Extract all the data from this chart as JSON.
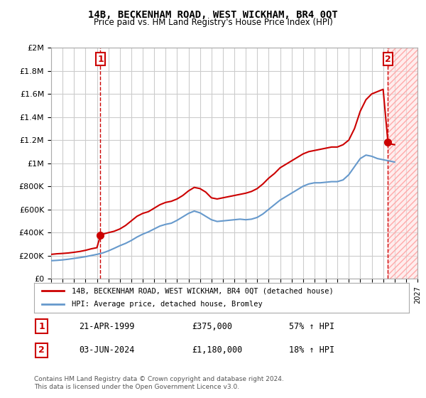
{
  "title": "14B, BECKENHAM ROAD, WEST WICKHAM, BR4 0QT",
  "subtitle": "Price paid vs. HM Land Registry's House Price Index (HPI)",
  "legend_label_red": "14B, BECKENHAM ROAD, WEST WICKHAM, BR4 0QT (detached house)",
  "legend_label_blue": "HPI: Average price, detached house, Bromley",
  "annotation1_box": "1",
  "annotation1_date": "21-APR-1999",
  "annotation1_price": "£375,000",
  "annotation1_hpi": "57% ↑ HPI",
  "annotation2_box": "2",
  "annotation2_date": "03-JUN-2024",
  "annotation2_price": "£1,180,000",
  "annotation2_hpi": "18% ↑ HPI",
  "footer": "Contains HM Land Registry data © Crown copyright and database right 2024.\nThis data is licensed under the Open Government Licence v3.0.",
  "xlim": [
    1995.0,
    2027.0
  ],
  "ylim": [
    0,
    2000000
  ],
  "red_color": "#cc0000",
  "blue_color": "#6699cc",
  "vline_color": "#cc0000",
  "background_color": "#ffffff",
  "grid_color": "#cccccc",
  "hatch_color": "#ffcccc",
  "transaction1_x": 1999.31,
  "transaction1_y": 375000,
  "transaction2_x": 2024.42,
  "transaction2_y": 1180000,
  "red_x": [
    1995.0,
    1995.5,
    1996.0,
    1996.5,
    1997.0,
    1997.5,
    1998.0,
    1998.5,
    1999.0,
    1999.31,
    1999.5,
    2000.0,
    2000.5,
    2001.0,
    2001.5,
    2002.0,
    2002.5,
    2003.0,
    2003.5,
    2004.0,
    2004.5,
    2005.0,
    2005.5,
    2006.0,
    2006.5,
    2007.0,
    2007.5,
    2008.0,
    2008.5,
    2009.0,
    2009.5,
    2010.0,
    2010.5,
    2011.0,
    2011.5,
    2012.0,
    2012.5,
    2013.0,
    2013.5,
    2014.0,
    2014.5,
    2015.0,
    2015.5,
    2016.0,
    2016.5,
    2017.0,
    2017.5,
    2018.0,
    2018.5,
    2019.0,
    2019.5,
    2020.0,
    2020.5,
    2021.0,
    2021.5,
    2022.0,
    2022.5,
    2023.0,
    2023.5,
    2024.0,
    2024.42,
    2024.5,
    2025.0
  ],
  "red_y": [
    210000,
    215000,
    218000,
    222000,
    228000,
    235000,
    245000,
    258000,
    268000,
    375000,
    385000,
    398000,
    410000,
    430000,
    460000,
    500000,
    540000,
    565000,
    580000,
    610000,
    640000,
    660000,
    670000,
    690000,
    720000,
    760000,
    790000,
    780000,
    750000,
    700000,
    690000,
    700000,
    710000,
    720000,
    730000,
    740000,
    755000,
    780000,
    820000,
    870000,
    910000,
    960000,
    990000,
    1020000,
    1050000,
    1080000,
    1100000,
    1110000,
    1120000,
    1130000,
    1140000,
    1140000,
    1160000,
    1200000,
    1300000,
    1450000,
    1550000,
    1600000,
    1620000,
    1640000,
    1180000,
    1170000,
    1160000
  ],
  "blue_x": [
    1995.0,
    1995.5,
    1996.0,
    1996.5,
    1997.0,
    1997.5,
    1998.0,
    1998.5,
    1999.0,
    1999.5,
    2000.0,
    2000.5,
    2001.0,
    2001.5,
    2002.0,
    2002.5,
    2003.0,
    2003.5,
    2004.0,
    2004.5,
    2005.0,
    2005.5,
    2006.0,
    2006.5,
    2007.0,
    2007.5,
    2008.0,
    2008.5,
    2009.0,
    2009.5,
    2010.0,
    2010.5,
    2011.0,
    2011.5,
    2012.0,
    2012.5,
    2013.0,
    2013.5,
    2014.0,
    2014.5,
    2015.0,
    2015.5,
    2016.0,
    2016.5,
    2017.0,
    2017.5,
    2018.0,
    2018.5,
    2019.0,
    2019.5,
    2020.0,
    2020.5,
    2021.0,
    2021.5,
    2022.0,
    2022.5,
    2023.0,
    2023.5,
    2024.0,
    2024.5,
    2025.0
  ],
  "blue_y": [
    155000,
    158000,
    162000,
    168000,
    175000,
    182000,
    190000,
    200000,
    210000,
    222000,
    240000,
    262000,
    285000,
    305000,
    330000,
    360000,
    385000,
    405000,
    430000,
    455000,
    470000,
    480000,
    505000,
    535000,
    565000,
    585000,
    570000,
    540000,
    510000,
    495000,
    500000,
    505000,
    510000,
    515000,
    510000,
    515000,
    530000,
    560000,
    600000,
    640000,
    680000,
    710000,
    740000,
    770000,
    800000,
    820000,
    830000,
    830000,
    835000,
    840000,
    840000,
    855000,
    900000,
    970000,
    1040000,
    1070000,
    1060000,
    1040000,
    1030000,
    1020000,
    1010000
  ]
}
